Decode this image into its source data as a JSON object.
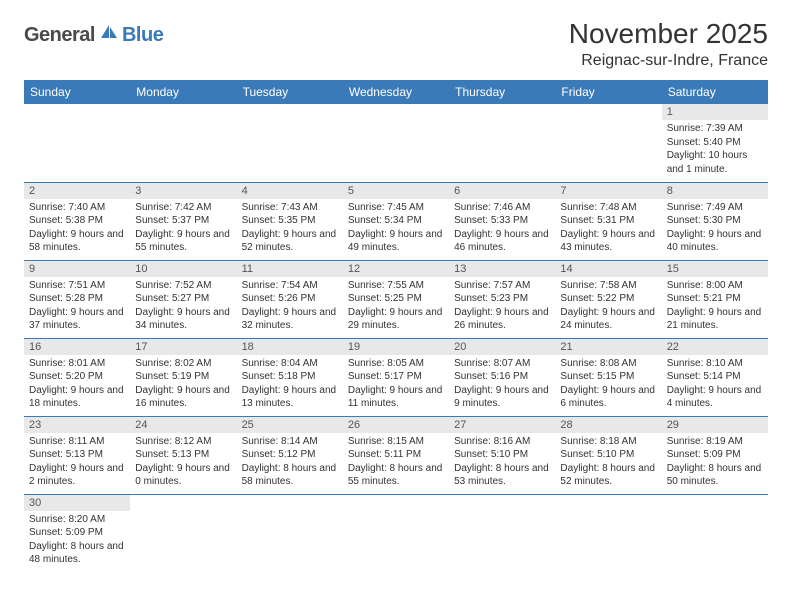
{
  "logo": {
    "part1": "General",
    "part2": "Blue"
  },
  "title": "November 2025",
  "location": "Reignac-sur-Indre, France",
  "colors": {
    "header_blue": "#3a7ab8",
    "row_grey": "#e8e8e8",
    "logo_grey": "#4a4a4a",
    "text": "#333333",
    "white": "#ffffff"
  },
  "day_headers": [
    "Sunday",
    "Monday",
    "Tuesday",
    "Wednesday",
    "Thursday",
    "Friday",
    "Saturday"
  ],
  "weeks": [
    [
      {
        "n": "",
        "sr": "",
        "ss": "",
        "dl": ""
      },
      {
        "n": "",
        "sr": "",
        "ss": "",
        "dl": ""
      },
      {
        "n": "",
        "sr": "",
        "ss": "",
        "dl": ""
      },
      {
        "n": "",
        "sr": "",
        "ss": "",
        "dl": ""
      },
      {
        "n": "",
        "sr": "",
        "ss": "",
        "dl": ""
      },
      {
        "n": "",
        "sr": "",
        "ss": "",
        "dl": ""
      },
      {
        "n": "1",
        "sr": "Sunrise: 7:39 AM",
        "ss": "Sunset: 5:40 PM",
        "dl": "Daylight: 10 hours and 1 minute."
      }
    ],
    [
      {
        "n": "2",
        "sr": "Sunrise: 7:40 AM",
        "ss": "Sunset: 5:38 PM",
        "dl": "Daylight: 9 hours and 58 minutes."
      },
      {
        "n": "3",
        "sr": "Sunrise: 7:42 AM",
        "ss": "Sunset: 5:37 PM",
        "dl": "Daylight: 9 hours and 55 minutes."
      },
      {
        "n": "4",
        "sr": "Sunrise: 7:43 AM",
        "ss": "Sunset: 5:35 PM",
        "dl": "Daylight: 9 hours and 52 minutes."
      },
      {
        "n": "5",
        "sr": "Sunrise: 7:45 AM",
        "ss": "Sunset: 5:34 PM",
        "dl": "Daylight: 9 hours and 49 minutes."
      },
      {
        "n": "6",
        "sr": "Sunrise: 7:46 AM",
        "ss": "Sunset: 5:33 PM",
        "dl": "Daylight: 9 hours and 46 minutes."
      },
      {
        "n": "7",
        "sr": "Sunrise: 7:48 AM",
        "ss": "Sunset: 5:31 PM",
        "dl": "Daylight: 9 hours and 43 minutes."
      },
      {
        "n": "8",
        "sr": "Sunrise: 7:49 AM",
        "ss": "Sunset: 5:30 PM",
        "dl": "Daylight: 9 hours and 40 minutes."
      }
    ],
    [
      {
        "n": "9",
        "sr": "Sunrise: 7:51 AM",
        "ss": "Sunset: 5:28 PM",
        "dl": "Daylight: 9 hours and 37 minutes."
      },
      {
        "n": "10",
        "sr": "Sunrise: 7:52 AM",
        "ss": "Sunset: 5:27 PM",
        "dl": "Daylight: 9 hours and 34 minutes."
      },
      {
        "n": "11",
        "sr": "Sunrise: 7:54 AM",
        "ss": "Sunset: 5:26 PM",
        "dl": "Daylight: 9 hours and 32 minutes."
      },
      {
        "n": "12",
        "sr": "Sunrise: 7:55 AM",
        "ss": "Sunset: 5:25 PM",
        "dl": "Daylight: 9 hours and 29 minutes."
      },
      {
        "n": "13",
        "sr": "Sunrise: 7:57 AM",
        "ss": "Sunset: 5:23 PM",
        "dl": "Daylight: 9 hours and 26 minutes."
      },
      {
        "n": "14",
        "sr": "Sunrise: 7:58 AM",
        "ss": "Sunset: 5:22 PM",
        "dl": "Daylight: 9 hours and 24 minutes."
      },
      {
        "n": "15",
        "sr": "Sunrise: 8:00 AM",
        "ss": "Sunset: 5:21 PM",
        "dl": "Daylight: 9 hours and 21 minutes."
      }
    ],
    [
      {
        "n": "16",
        "sr": "Sunrise: 8:01 AM",
        "ss": "Sunset: 5:20 PM",
        "dl": "Daylight: 9 hours and 18 minutes."
      },
      {
        "n": "17",
        "sr": "Sunrise: 8:02 AM",
        "ss": "Sunset: 5:19 PM",
        "dl": "Daylight: 9 hours and 16 minutes."
      },
      {
        "n": "18",
        "sr": "Sunrise: 8:04 AM",
        "ss": "Sunset: 5:18 PM",
        "dl": "Daylight: 9 hours and 13 minutes."
      },
      {
        "n": "19",
        "sr": "Sunrise: 8:05 AM",
        "ss": "Sunset: 5:17 PM",
        "dl": "Daylight: 9 hours and 11 minutes."
      },
      {
        "n": "20",
        "sr": "Sunrise: 8:07 AM",
        "ss": "Sunset: 5:16 PM",
        "dl": "Daylight: 9 hours and 9 minutes."
      },
      {
        "n": "21",
        "sr": "Sunrise: 8:08 AM",
        "ss": "Sunset: 5:15 PM",
        "dl": "Daylight: 9 hours and 6 minutes."
      },
      {
        "n": "22",
        "sr": "Sunrise: 8:10 AM",
        "ss": "Sunset: 5:14 PM",
        "dl": "Daylight: 9 hours and 4 minutes."
      }
    ],
    [
      {
        "n": "23",
        "sr": "Sunrise: 8:11 AM",
        "ss": "Sunset: 5:13 PM",
        "dl": "Daylight: 9 hours and 2 minutes."
      },
      {
        "n": "24",
        "sr": "Sunrise: 8:12 AM",
        "ss": "Sunset: 5:13 PM",
        "dl": "Daylight: 9 hours and 0 minutes."
      },
      {
        "n": "25",
        "sr": "Sunrise: 8:14 AM",
        "ss": "Sunset: 5:12 PM",
        "dl": "Daylight: 8 hours and 58 minutes."
      },
      {
        "n": "26",
        "sr": "Sunrise: 8:15 AM",
        "ss": "Sunset: 5:11 PM",
        "dl": "Daylight: 8 hours and 55 minutes."
      },
      {
        "n": "27",
        "sr": "Sunrise: 8:16 AM",
        "ss": "Sunset: 5:10 PM",
        "dl": "Daylight: 8 hours and 53 minutes."
      },
      {
        "n": "28",
        "sr": "Sunrise: 8:18 AM",
        "ss": "Sunset: 5:10 PM",
        "dl": "Daylight: 8 hours and 52 minutes."
      },
      {
        "n": "29",
        "sr": "Sunrise: 8:19 AM",
        "ss": "Sunset: 5:09 PM",
        "dl": "Daylight: 8 hours and 50 minutes."
      }
    ],
    [
      {
        "n": "30",
        "sr": "Sunrise: 8:20 AM",
        "ss": "Sunset: 5:09 PM",
        "dl": "Daylight: 8 hours and 48 minutes."
      },
      {
        "n": "",
        "sr": "",
        "ss": "",
        "dl": ""
      },
      {
        "n": "",
        "sr": "",
        "ss": "",
        "dl": ""
      },
      {
        "n": "",
        "sr": "",
        "ss": "",
        "dl": ""
      },
      {
        "n": "",
        "sr": "",
        "ss": "",
        "dl": ""
      },
      {
        "n": "",
        "sr": "",
        "ss": "",
        "dl": ""
      },
      {
        "n": "",
        "sr": "",
        "ss": "",
        "dl": ""
      }
    ]
  ]
}
